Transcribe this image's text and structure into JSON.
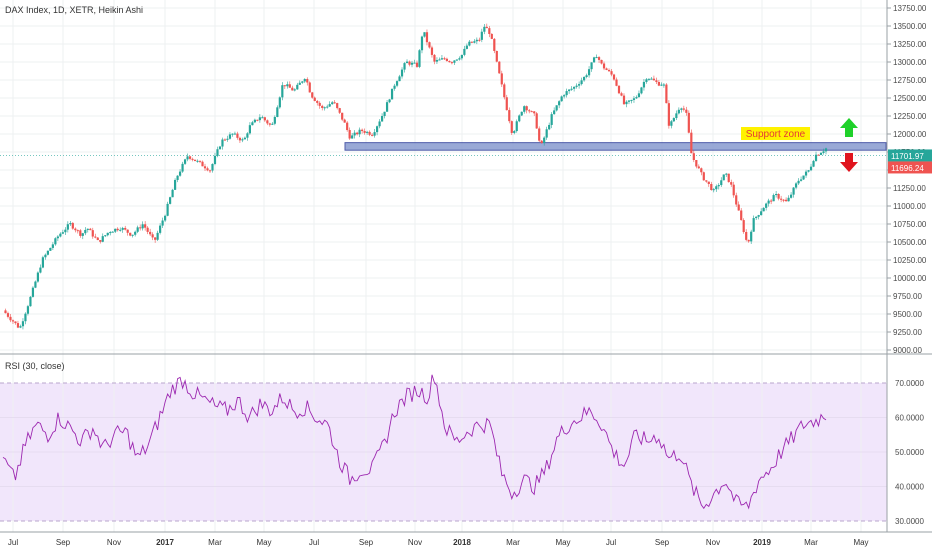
{
  "chart_data": [
    {
      "type": "candlestick",
      "title": "DAX Index, 1D, XETR, Heikin Ashi",
      "colors": {
        "up": "#26a69a",
        "down": "#ef5350"
      },
      "ylim": [
        9000,
        13750
      ],
      "y_ticks": [
        "13750.00",
        "13500.00",
        "13250.00",
        "13000.00",
        "12750.00",
        "12500.00",
        "12250.00",
        "12000.00",
        "11750.00",
        "11500.00",
        "11250.00",
        "11000.00",
        "10750.00",
        "10500.00",
        "10250.00",
        "10000.00",
        "9750.00",
        "9500.00",
        "9250.00",
        "9000.00"
      ],
      "x_ticks": [
        "Jul",
        "Sep",
        "Nov",
        "2017",
        "Mar",
        "May",
        "Jul",
        "Sep",
        "Nov",
        "2018",
        "Mar",
        "May",
        "Jul",
        "Sep",
        "Nov",
        "2019",
        "Mar",
        "May"
      ],
      "price_path": [
        [
          0,
          9550
        ],
        [
          3,
          9300
        ],
        [
          5,
          9750
        ],
        [
          7,
          10250
        ],
        [
          10,
          10600
        ],
        [
          12,
          10750
        ],
        [
          14,
          10600
        ],
        [
          15,
          10700
        ],
        [
          17,
          10500
        ],
        [
          19,
          10650
        ],
        [
          21,
          10700
        ],
        [
          23,
          10600
        ],
        [
          25,
          10750
        ],
        [
          27,
          10500
        ],
        [
          29,
          10900
        ],
        [
          31,
          11400
        ],
        [
          33,
          11700
        ],
        [
          35,
          11600
        ],
        [
          37,
          11500
        ],
        [
          39,
          11900
        ],
        [
          41,
          12000
        ],
        [
          43,
          11900
        ],
        [
          44,
          12100
        ],
        [
          46,
          12250
        ],
        [
          48,
          12100
        ],
        [
          50,
          12700
        ],
        [
          52,
          12600
        ],
        [
          54,
          12800
        ],
        [
          55,
          12550
        ],
        [
          57,
          12350
        ],
        [
          59,
          12450
        ],
        [
          61,
          12150
        ],
        [
          62,
          11950
        ],
        [
          64,
          12050
        ],
        [
          66,
          12000
        ],
        [
          68,
          12300
        ],
        [
          70,
          12700
        ],
        [
          72,
          13000
        ],
        [
          74,
          12950
        ],
        [
          75,
          13450
        ],
        [
          77,
          13000
        ],
        [
          79,
          13050
        ],
        [
          80,
          13000
        ],
        [
          82,
          13100
        ],
        [
          83,
          13250
        ],
        [
          85,
          13300
        ],
        [
          86,
          13500
        ],
        [
          87,
          13400
        ],
        [
          89,
          12700
        ],
        [
          90,
          12350
        ],
        [
          91,
          12000
        ],
        [
          93,
          12400
        ],
        [
          95,
          12250
        ],
        [
          96,
          11800
        ],
        [
          98,
          12250
        ],
        [
          100,
          12550
        ],
        [
          102,
          12650
        ],
        [
          104,
          12800
        ],
        [
          106,
          13100
        ],
        [
          107,
          12950
        ],
        [
          109,
          12800
        ],
        [
          111,
          12400
        ],
        [
          113,
          12500
        ],
        [
          115,
          12800
        ],
        [
          117,
          12700
        ],
        [
          118,
          12700
        ],
        [
          119,
          12100
        ],
        [
          121,
          12400
        ],
        [
          122,
          12300
        ],
        [
          123,
          11700
        ],
        [
          125,
          11400
        ],
        [
          127,
          11200
        ],
        [
          129,
          11450
        ],
        [
          130,
          11300
        ],
        [
          132,
          10750
        ],
        [
          133,
          10450
        ],
        [
          134,
          10800
        ],
        [
          136,
          11000
        ],
        [
          138,
          11150
        ],
        [
          140,
          11050
        ],
        [
          142,
          11350
        ],
        [
          144,
          11500
        ],
        [
          145,
          11700
        ],
        [
          147,
          11800
        ]
      ],
      "last_price": "11701.97",
      "second_price": "11696.24",
      "colors_labels": {
        "last": "#26a69a",
        "second": "#ef5350"
      }
    },
    {
      "type": "line",
      "title": "RSI (30, close)",
      "ylim": [
        30,
        70
      ],
      "y_ticks": [
        "70.0000",
        "60.0000",
        "50.0000",
        "40.0000",
        "30.0000"
      ],
      "values_path": [
        [
          0,
          48
        ],
        [
          2,
          42
        ],
        [
          4,
          52
        ],
        [
          6,
          58
        ],
        [
          8,
          55
        ],
        [
          10,
          60
        ],
        [
          12,
          57
        ],
        [
          14,
          53
        ],
        [
          16,
          57
        ],
        [
          18,
          51
        ],
        [
          20,
          55
        ],
        [
          22,
          56
        ],
        [
          24,
          48
        ],
        [
          26,
          52
        ],
        [
          28,
          60
        ],
        [
          30,
          68
        ],
        [
          32,
          71
        ],
        [
          34,
          67
        ],
        [
          36,
          65
        ],
        [
          38,
          63
        ],
        [
          40,
          62
        ],
        [
          42,
          65
        ],
        [
          44,
          60
        ],
        [
          46,
          64
        ],
        [
          48,
          62
        ],
        [
          50,
          66
        ],
        [
          52,
          62
        ],
        [
          54,
          63
        ],
        [
          56,
          60
        ],
        [
          58,
          58
        ],
        [
          60,
          48
        ],
        [
          62,
          42
        ],
        [
          64,
          45
        ],
        [
          66,
          45
        ],
        [
          68,
          52
        ],
        [
          70,
          62
        ],
        [
          72,
          66
        ],
        [
          74,
          68
        ],
        [
          76,
          66
        ],
        [
          77,
          73
        ],
        [
          79,
          57
        ],
        [
          81,
          53
        ],
        [
          83,
          56
        ],
        [
          85,
          58
        ],
        [
          87,
          58
        ],
        [
          89,
          44
        ],
        [
          91,
          38
        ],
        [
          93,
          42
        ],
        [
          95,
          40
        ],
        [
          97,
          45
        ],
        [
          99,
          54
        ],
        [
          101,
          58
        ],
        [
          103,
          60
        ],
        [
          105,
          62
        ],
        [
          107,
          58
        ],
        [
          109,
          50
        ],
        [
          111,
          46
        ],
        [
          113,
          55
        ],
        [
          115,
          53
        ],
        [
          117,
          55
        ],
        [
          119,
          48
        ],
        [
          121,
          50
        ],
        [
          123,
          40
        ],
        [
          125,
          34
        ],
        [
          127,
          38
        ],
        [
          129,
          42
        ],
        [
          131,
          35
        ],
        [
          133,
          34
        ],
        [
          135,
          42
        ],
        [
          137,
          45
        ],
        [
          139,
          50
        ],
        [
          141,
          54
        ],
        [
          143,
          58
        ],
        [
          145,
          59
        ],
        [
          147,
          61
        ]
      ],
      "last_value": "60.4"
    }
  ],
  "annotation": {
    "support_label": "Support zone"
  }
}
